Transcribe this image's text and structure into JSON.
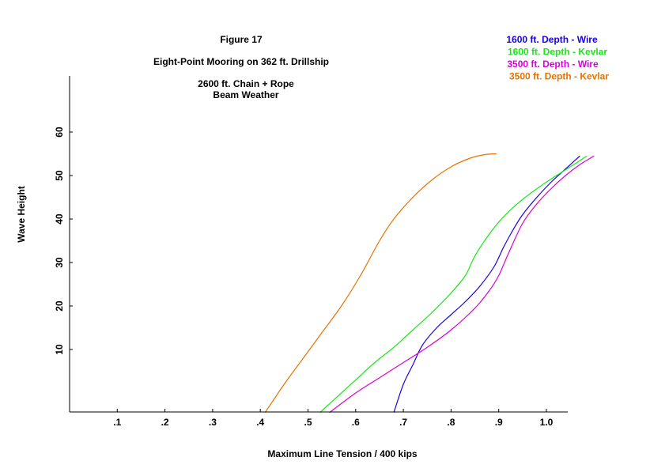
{
  "chart_data": {
    "type": "line",
    "title": "Figure 17",
    "subtitle": "Eight-Point Mooring on 362 ft. Drillship",
    "annotation": [
      "2600 ft. Chain + Rope",
      "Beam Weather"
    ],
    "xlabel": "Maximum Line Tension / 400 kips",
    "ylabel": "Wave Height",
    "xlim": [
      0,
      1.05
    ],
    "ylim": [
      -4.5,
      73
    ],
    "xticks": [
      0.1,
      0.2,
      0.3,
      0.4,
      0.5,
      0.6,
      0.7,
      0.8,
      0.9,
      1.0
    ],
    "xtick_labels": [
      ".1",
      ".2",
      ".3",
      ".4",
      ".5",
      ".6",
      ".7",
      ".8",
      ".9",
      "1.0"
    ],
    "yticks": [
      10,
      20,
      30,
      40,
      50,
      60
    ],
    "ytick_labels": [
      "10",
      "20",
      "30",
      "40",
      "50",
      "60"
    ],
    "grid": false,
    "legend_position": "top-right",
    "series": [
      {
        "name": "1600 ft. Depth - Wire",
        "color": "#1a00e6",
        "x": [
          0.68,
          0.7,
          0.72,
          0.74,
          0.77,
          0.8,
          0.83,
          0.86,
          0.89,
          0.91,
          0.93,
          0.95,
          0.98,
          1.01,
          1.04,
          1.07
        ],
        "y": [
          -4.5,
          2,
          6.5,
          11,
          15,
          18,
          21,
          24.5,
          29,
          33.5,
          37.5,
          41,
          45,
          48.5,
          51.5,
          54.5
        ]
      },
      {
        "name": "1600 ft. Depth - Kevlar",
        "color": "#19e619",
        "x": [
          0.525,
          0.56,
          0.6,
          0.64,
          0.68,
          0.72,
          0.76,
          0.8,
          0.83,
          0.85,
          0.88,
          0.91,
          0.95,
          1.0,
          1.05,
          1.085
        ],
        "y": [
          -4.5,
          -1,
          3,
          7,
          10.5,
          14.5,
          18.5,
          23,
          27,
          31.5,
          36.5,
          40.5,
          44.5,
          48.5,
          52,
          54.5
        ]
      },
      {
        "name": "3500 ft. Depth - Wire",
        "color": "#d900d9",
        "x": [
          0.545,
          0.6,
          0.65,
          0.7,
          0.75,
          0.8,
          0.85,
          0.88,
          0.9,
          0.92,
          0.95,
          0.98,
          1.01,
          1.04,
          1.07,
          1.1
        ],
        "y": [
          -4.5,
          0,
          3.5,
          7,
          10.5,
          14.5,
          19.5,
          23.5,
          27,
          32,
          39,
          43.5,
          47,
          50,
          52.5,
          54.5
        ]
      },
      {
        "name": "3500 ft. Depth - Kevlar",
        "color": "#e67300",
        "x": [
          0.41,
          0.45,
          0.49,
          0.53,
          0.57,
          0.61,
          0.65,
          0.68,
          0.72,
          0.76,
          0.8,
          0.84,
          0.87,
          0.895
        ],
        "y": [
          -4.5,
          2,
          8,
          14,
          20,
          27,
          35,
          40,
          45,
          49,
          52,
          54,
          54.8,
          55
        ]
      }
    ]
  }
}
